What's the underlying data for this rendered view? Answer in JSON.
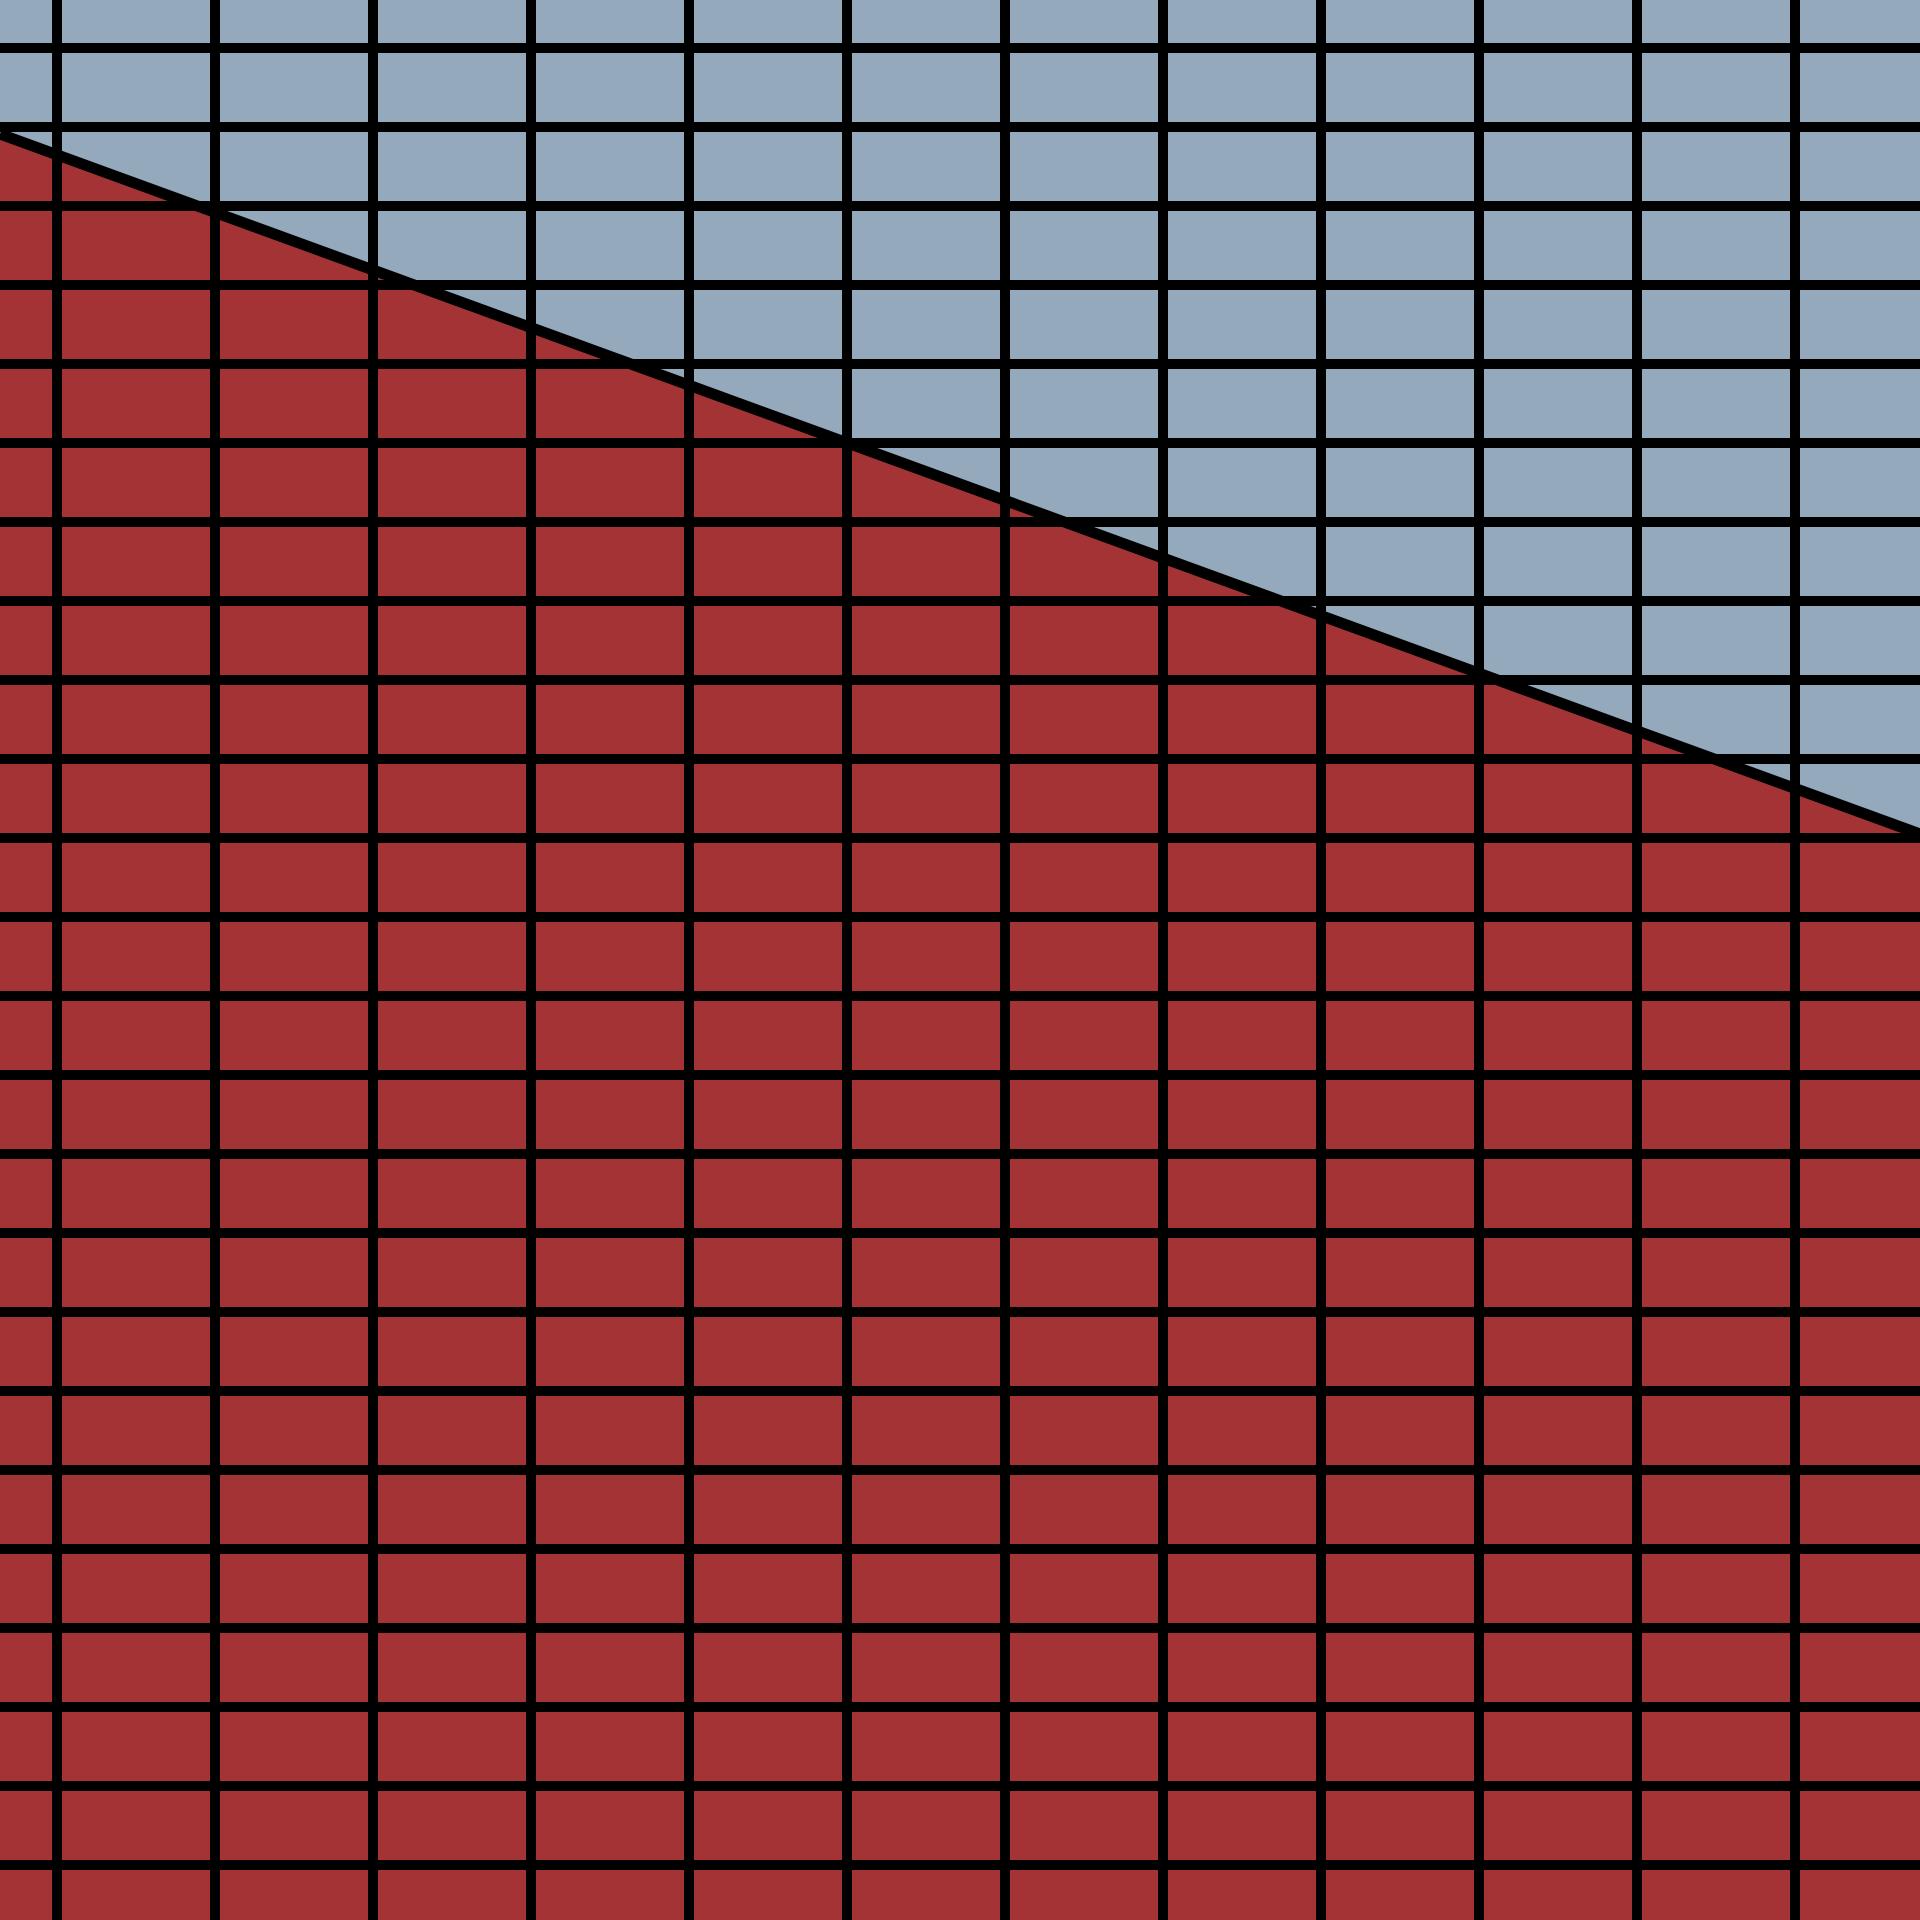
{
  "colors": {
    "upper_region": "#94a9bb",
    "lower_region": "#a33334",
    "lines": "#000000"
  },
  "grid": {
    "vertical_lines": 12,
    "horizontal_lines": 24
  }
}
